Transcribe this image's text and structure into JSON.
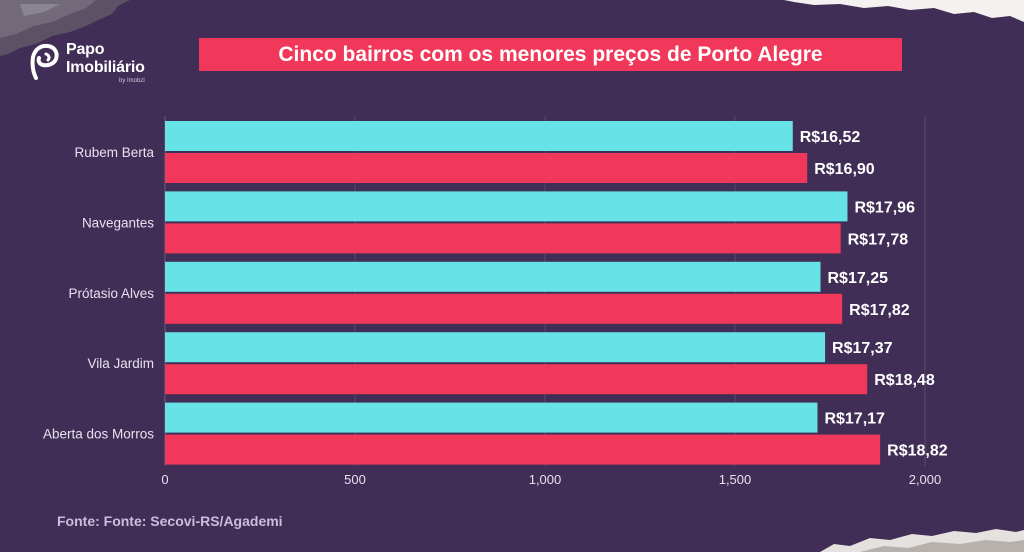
{
  "brand": {
    "line1": "Papo",
    "line2": "Imobiliário",
    "by": "by Imobzi",
    "logo_icon": "papo-imobiliario-logo-icon"
  },
  "colors": {
    "background": "#402e56",
    "banner": "#f2385a",
    "series_1": "#67e2e6",
    "series_2": "#f2385a",
    "text_light": "#ffffff",
    "axis_text": "#e7e1ef",
    "source_text": "#c9bedb"
  },
  "chart_data": {
    "type": "bar",
    "orientation": "horizontal",
    "title": "Cinco bairros com os menores preços de Porto Alegre",
    "categories": [
      "Rubem Berta",
      "Navegantes",
      "Prótasio Alves",
      "Vila Jardim",
      "Aberta dos Morros"
    ],
    "series": [
      {
        "color": "#67e2e6",
        "values": [
          1652,
          1796,
          1725,
          1737,
          1717
        ],
        "labels": [
          "R$16,52",
          "R$17,96",
          "R$17,25",
          "R$17,37",
          "R$17,17"
        ]
      },
      {
        "color": "#f2385a",
        "values": [
          1690,
          1778,
          1782,
          1848,
          1882
        ],
        "labels": [
          "R$16,90",
          "R$17,78",
          "R$17,82",
          "R$18,48",
          "R$18,82"
        ]
      }
    ],
    "xlim": [
      0,
      2000
    ],
    "xticks": [
      0,
      500,
      1000,
      1500,
      2000
    ],
    "xtick_labels": [
      "0",
      "500",
      "1,000",
      "1,500",
      "2,000"
    ],
    "grid": "vertical",
    "legend": "none"
  },
  "source": "Fonte: Fonte: Secovi-RS/Agademi"
}
